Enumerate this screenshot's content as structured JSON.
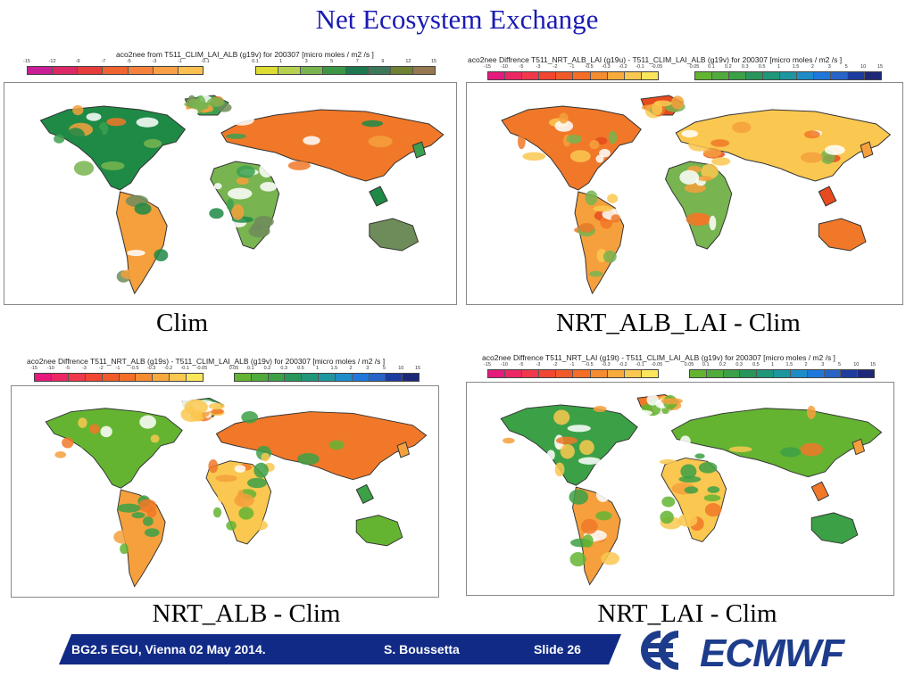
{
  "slide": {
    "title": "Net Ecosystem Exchange"
  },
  "panels": [
    {
      "legend_title": "aco2nee from T511_CLIM_LAI_ALB (g19v) for 200307 [micro moles / m2 /s ]",
      "ticks_neg": [
        "-15",
        "-12",
        "-9",
        "-7",
        "-5",
        "-3",
        "-1",
        "-0.1"
      ],
      "ticks_pos": [
        "0.1",
        "1",
        "3",
        "5",
        "7",
        "9",
        "12",
        "15"
      ],
      "colors_neg": [
        "#c81e96",
        "#dc2864",
        "#e63c3c",
        "#f06432",
        "#f5823c",
        "#f8a046",
        "#fac050"
      ],
      "colors_pos": [
        "#dcdc32",
        "#b4d250",
        "#78b450",
        "#3c9646",
        "#1e7850",
        "#3c785a",
        "#6e8232",
        "#967850"
      ],
      "caption": "Clim",
      "fill_colors": [
        "#1e8a46",
        "#3ca050",
        "#f5a03c",
        "#f07828",
        "#78b450",
        "#6e8c5a"
      ]
    },
    {
      "legend_title": "aco2nee Diffrence T511_NRT_ALB_LAI (g19u) - T511_CLIM_LAI_ALB (g19v) for 200307 [micro moles / m2 /s ]",
      "ticks_neg": [
        "-15",
        "-10",
        "-5",
        "-3",
        "-2",
        "-1",
        "-0.5",
        "-0.3",
        "-0.2",
        "-0.1",
        "-0.05"
      ],
      "ticks_pos": [
        "0.05",
        "0.1",
        "0.2",
        "0.3",
        "0.5",
        "1",
        "1.5",
        "2",
        "3",
        "5",
        "10",
        "15"
      ],
      "colors_neg": [
        "#e6197d",
        "#eb2864",
        "#f0374b",
        "#f04632",
        "#f05a28",
        "#f56e28",
        "#f58c32",
        "#f8aa3c",
        "#fac850",
        "#fae65a"
      ],
      "colors_pos": [
        "#64b432",
        "#50aa3c",
        "#3ca046",
        "#28965a",
        "#1e9678",
        "#1e96a0",
        "#1e8cc8",
        "#1e78dc",
        "#2864c8",
        "#1e3ca0",
        "#1e2878"
      ],
      "caption": "NRT_ALB_LAI - Clim",
      "fill_colors": [
        "#f07828",
        "#e64a1e",
        "#f5a03c",
        "#fac850",
        "#78b450"
      ]
    },
    {
      "legend_title": "aco2nee Diffrence T511_NRT_ALB (g19s) - T511_CLIM_LAI_ALB (g19v) for 200307 [micro moles / m2 /s ]",
      "ticks_neg": [
        "-15",
        "-10",
        "-5",
        "-3",
        "-2",
        "-1",
        "-0.5",
        "-0.3",
        "-0.2",
        "-0.1",
        "-0.05"
      ],
      "ticks_pos": [
        "0.05",
        "0.1",
        "0.2",
        "0.3",
        "0.5",
        "1",
        "1.5",
        "2",
        "3",
        "5",
        "10",
        "15"
      ],
      "colors_neg": [
        "#e6197d",
        "#eb2864",
        "#f0374b",
        "#f04632",
        "#f05a28",
        "#f56e28",
        "#f58c32",
        "#f8aa3c",
        "#fac850",
        "#fae65a"
      ],
      "colors_pos": [
        "#64b432",
        "#50aa3c",
        "#3ca046",
        "#28965a",
        "#1e9678",
        "#1e96a0",
        "#1e8cc8",
        "#1e78dc",
        "#2864c8",
        "#1e3ca0",
        "#1e2878"
      ],
      "caption": "NRT_ALB - Clim",
      "fill_colors": [
        "#64b432",
        "#3ca046",
        "#f5a03c",
        "#f07828",
        "#fac850"
      ]
    },
    {
      "legend_title": "aco2nee Diffrence T511_NRT_LAI (g19t) - T511_CLIM_LAI_ALB (g19v) for 200307 [micro moles / m2 /s ]",
      "ticks_neg": [
        "-15",
        "-10",
        "-5",
        "-3",
        "-2",
        "-1",
        "-0.5",
        "-0.3",
        "-0.2",
        "-0.1",
        "-0.05"
      ],
      "ticks_pos": [
        "0.05",
        "0.1",
        "0.2",
        "0.3",
        "0.5",
        "1",
        "1.5",
        "2",
        "3",
        "5",
        "10",
        "15"
      ],
      "colors_neg": [
        "#e6197d",
        "#eb2864",
        "#f0374b",
        "#f04632",
        "#f05a28",
        "#f56e28",
        "#f58c32",
        "#f8aa3c",
        "#fac850",
        "#fae65a"
      ],
      "colors_pos": [
        "#64b432",
        "#50aa3c",
        "#3ca046",
        "#28965a",
        "#1e9678",
        "#1e96a0",
        "#1e8cc8",
        "#1e78dc",
        "#2864c8",
        "#1e3ca0",
        "#1e2878"
      ],
      "caption": "NRT_LAI - Clim",
      "fill_colors": [
        "#3ca046",
        "#f07828",
        "#f5a03c",
        "#64b432",
        "#fac850"
      ]
    }
  ],
  "footer": {
    "session": "BG2.5  EGU, Vienna 02 May 2014.",
    "author": "S. Boussetta",
    "slide": "Slide 26",
    "band_color": "#102a86",
    "logo_text": "ECMWF",
    "logo_color": "#1e3c8c"
  }
}
